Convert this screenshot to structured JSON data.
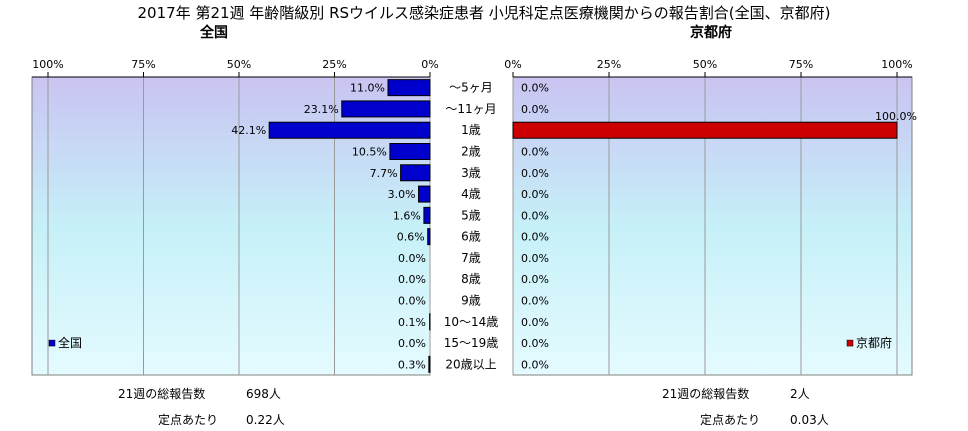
{
  "title": "2017年 第21週 年齢階級別 RSウイルス感染症患者 小児科定点医療機関からの報告割合(全国、京都府)",
  "chart_data": [
    {
      "type": "bar",
      "orientation": "horizontal",
      "direction": "right-to-left",
      "title": "全国",
      "categories": [
        "～5ヶ月",
        "～11ヶ月",
        "1歳",
        "2歳",
        "3歳",
        "4歳",
        "5歳",
        "6歳",
        "7歳",
        "8歳",
        "9歳",
        "10～14歳",
        "15～19歳",
        "20歳以上"
      ],
      "series": [
        {
          "name": "全国",
          "color": "#0000cc",
          "values": [
            11.0,
            23.1,
            42.1,
            10.5,
            7.7,
            3.0,
            1.6,
            0.6,
            0.0,
            0.0,
            0.0,
            0.1,
            0.0,
            0.3
          ],
          "labels": [
            "11.0%",
            "23.1%",
            "42.1%",
            "10.5%",
            "7.7%",
            "3.0%",
            "1.6%",
            "0.6%",
            "0.0%",
            "0.0%",
            "0.0%",
            "0.1%",
            "0.0%",
            "0.3%"
          ]
        }
      ],
      "xlim": [
        0,
        100
      ],
      "ticks": [
        "100%",
        "75%",
        "50%",
        "25%",
        "0%"
      ],
      "grid": true,
      "legend": "bottom-left"
    },
    {
      "type": "bar",
      "orientation": "horizontal",
      "direction": "left-to-right",
      "title": "京都府",
      "categories": [
        "～5ヶ月",
        "～11ヶ月",
        "1歳",
        "2歳",
        "3歳",
        "4歳",
        "5歳",
        "6歳",
        "7歳",
        "8歳",
        "9歳",
        "10～14歳",
        "15～19歳",
        "20歳以上"
      ],
      "series": [
        {
          "name": "京都府",
          "color": "#cc0000",
          "values": [
            0.0,
            0.0,
            100.0,
            0.0,
            0.0,
            0.0,
            0.0,
            0.0,
            0.0,
            0.0,
            0.0,
            0.0,
            0.0,
            0.0
          ],
          "labels": [
            "0.0%",
            "0.0%",
            "100.0%",
            "0.0%",
            "0.0%",
            "0.0%",
            "0.0%",
            "0.0%",
            "0.0%",
            "0.0%",
            "0.0%",
            "0.0%",
            "0.0%",
            "0.0%"
          ]
        }
      ],
      "xlim": [
        0,
        100
      ],
      "ticks": [
        "0%",
        "25%",
        "50%",
        "75%",
        "100%"
      ],
      "grid": true,
      "legend": "bottom-right"
    }
  ],
  "stats": {
    "national": {
      "total_label": "21週の総報告数",
      "total_value": "698人",
      "per_label": "定点あたり",
      "per_value": "0.22人"
    },
    "kyoto": {
      "total_label": "21週の総報告数",
      "total_value": "2人",
      "per_label": "定点あたり",
      "per_value": "0.03人"
    }
  }
}
